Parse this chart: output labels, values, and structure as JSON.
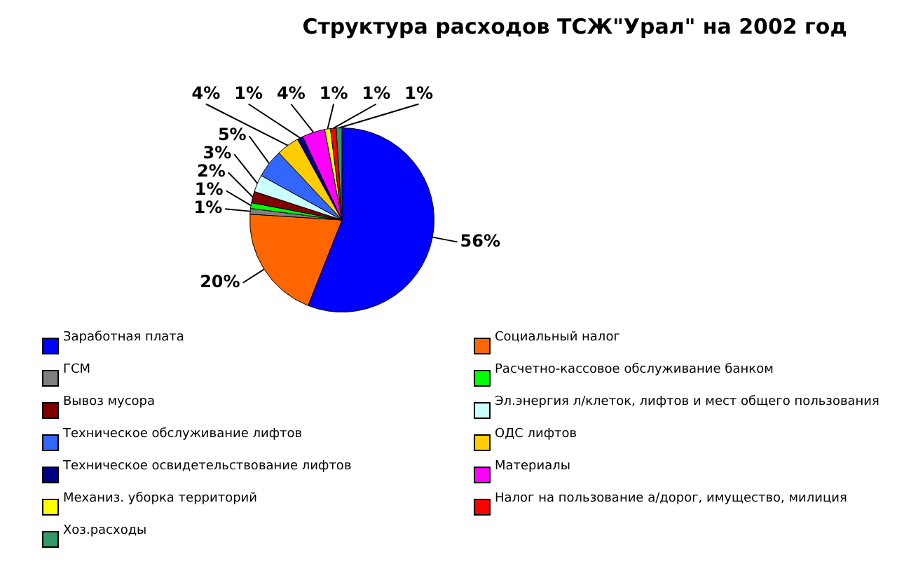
{
  "chart_data": {
    "type": "pie",
    "title": "Структура расходов ТСЖ\"Урал\" на 2002 год",
    "categories": [
      "Заработная плата",
      "Социальный налог",
      "ГСМ",
      "Расчетно-кассовое обслуживание банком",
      "Вывоз мусора",
      "Эл.энергия л/клеток, лифтов и мест общего пользования",
      "Техническое обслуживание лифтов",
      "ОДС лифтов",
      "Техническое освидетельствование лифтов",
      "Материалы",
      "Механиз. уборка территорий",
      "Налог на пользование а/дорог, имущество, милиция",
      "Хоз.расходы"
    ],
    "values": [
      56,
      20,
      1,
      1,
      2,
      3,
      5,
      4,
      1,
      4,
      1,
      1,
      1
    ],
    "colors": [
      "#0000ff",
      "#ff6600",
      "#808080",
      "#00ff00",
      "#800000",
      "#ccffff",
      "#3366ff",
      "#ffcc00",
      "#000080",
      "#ff00ff",
      "#ffff00",
      "#ff0000",
      "#339966"
    ],
    "value_labels": [
      "56%",
      "20%",
      "1%",
      "1%",
      "2%",
      "3%",
      "5%",
      "4%",
      "1%",
      "4%",
      "1%",
      "1%",
      "1%"
    ],
    "legend": "bottom"
  }
}
